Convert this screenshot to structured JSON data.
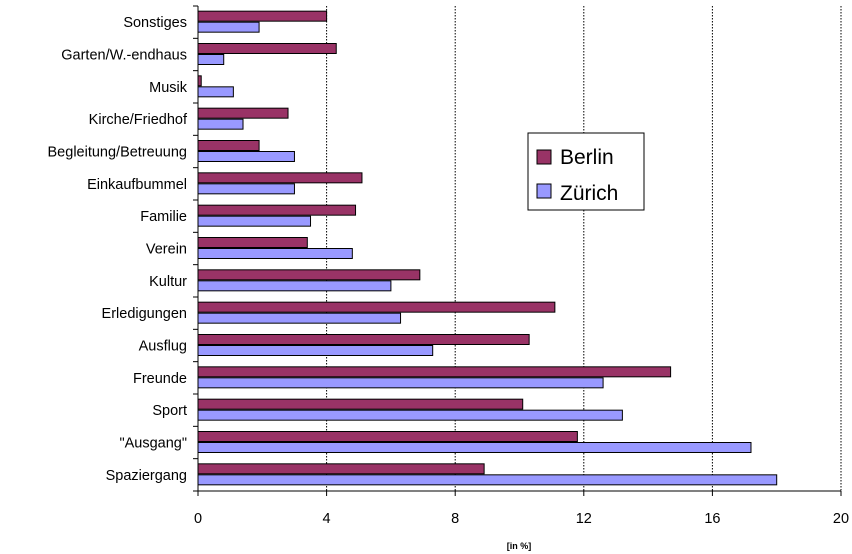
{
  "chart_data": {
    "type": "bar",
    "orientation": "horizontal",
    "categories": [
      "Sonstiges",
      "Garten/W.-endhaus",
      "Musik",
      "Kirche/Friedhof",
      "Begleitung/Betreuung",
      "Einkaufbummel",
      "Familie",
      "Verein",
      "Kultur",
      "Erledigungen",
      "Ausflug",
      "Freunde",
      "Sport",
      "\"Ausgang\"",
      "Spaziergang"
    ],
    "series": [
      {
        "name": "Berlin",
        "color": "#993366",
        "values": [
          4.0,
          4.3,
          0.1,
          2.8,
          1.9,
          5.1,
          4.9,
          3.4,
          6.9,
          11.1,
          10.3,
          14.7,
          10.1,
          11.8,
          8.9
        ]
      },
      {
        "name": "Zürich",
        "color": "#9999ff",
        "values": [
          1.9,
          0.8,
          1.1,
          1.4,
          3.0,
          3.0,
          3.5,
          4.8,
          6.0,
          6.3,
          7.3,
          12.6,
          13.2,
          17.2,
          18.0
        ]
      }
    ],
    "xlabel": "[in %]",
    "ylabel": "",
    "xlim": [
      0,
      20
    ],
    "xticks": [
      "0",
      "4",
      "8",
      "12",
      "16",
      "20"
    ],
    "grid": "vertical dashed",
    "legend_position": "center-right"
  }
}
